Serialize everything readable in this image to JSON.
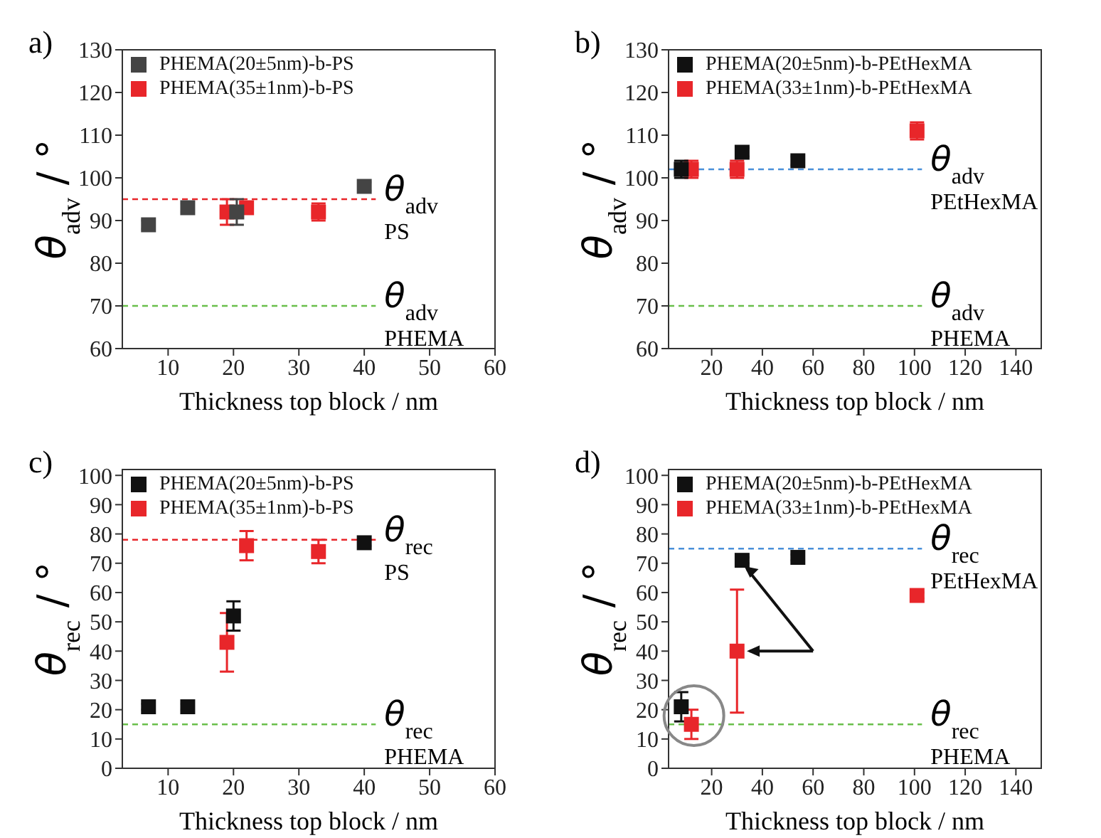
{
  "chart_data": [
    {
      "type": "scatter",
      "title": "a)",
      "xlabel": "Thickness top block / nm",
      "ylabel": "θ$_{adv}$ / °",
      "xlim": [
        3,
        60
      ],
      "xticks": [
        10,
        20,
        30,
        40,
        50,
        60
      ],
      "ylim": [
        60,
        130
      ],
      "yticks": [
        60,
        70,
        80,
        90,
        100,
        110,
        120,
        130
      ],
      "legend": "top left",
      "marker": "square",
      "grid": false,
      "series": [
        {
          "name": "PHEMA(20±5nm)-b-PS",
          "color": "#444444",
          "x": [
            7,
            13,
            20.5,
            40
          ],
          "values": [
            89,
            93,
            92,
            98
          ],
          "errors": [
            1,
            1,
            3,
            1
          ]
        },
        {
          "name": "PHEMA(35±1nm)-b-PS",
          "color": "#e8262a",
          "x": [
            19,
            22,
            33
          ],
          "values": [
            92,
            93,
            92
          ],
          "errors": [
            3,
            1,
            2
          ]
        }
      ],
      "ref_lines": [
        {
          "axis": "y",
          "value": 95,
          "label": "θ$_{adv}$ PS",
          "color": "#e8262a",
          "line_style": "dashed"
        },
        {
          "axis": "y",
          "value": 70,
          "label": "θ$_{adv}$ PHEMA",
          "color": "#6abf4b",
          "line_style": "dashed"
        }
      ]
    },
    {
      "type": "scatter",
      "title": "b)",
      "xlabel": "Thickness top block / nm",
      "ylabel": "θ$_{adv}$ / °",
      "xlim": [
        3,
        150
      ],
      "xticks": [
        20,
        40,
        60,
        80,
        100,
        120,
        140
      ],
      "ylim": [
        60,
        130
      ],
      "yticks": [
        60,
        70,
        80,
        90,
        100,
        110,
        120,
        130
      ],
      "legend": "top left",
      "marker": "square",
      "grid": false,
      "series": [
        {
          "name": "PHEMA(20±5nm)-b-PEtHexMA",
          "color": "#111111",
          "x": [
            8,
            32,
            54
          ],
          "values": [
            102,
            106,
            104
          ],
          "errors": [
            2,
            1,
            1
          ]
        },
        {
          "name": "PHEMA(33±1nm)-b-PEtHexMA",
          "color": "#e8262a",
          "x": [
            12,
            30,
            101
          ],
          "values": [
            102,
            102,
            111
          ],
          "errors": [
            2,
            2,
            2
          ]
        }
      ],
      "ref_lines": [
        {
          "axis": "y",
          "value": 102,
          "label": "θ$_{adv}$ PEtHexMA",
          "color": "#4a90d9",
          "line_style": "dashed"
        },
        {
          "axis": "y",
          "value": 70,
          "label": "θ$_{adv}$ PHEMA",
          "color": "#6abf4b",
          "line_style": "dashed"
        }
      ]
    },
    {
      "type": "scatter",
      "title": "c)",
      "xlabel": "Thickness top block / nm",
      "ylabel": "θ$_{rec}$ / °",
      "xlim": [
        3,
        60
      ],
      "xticks": [
        10,
        20,
        30,
        40,
        50,
        60
      ],
      "ylim": [
        0,
        102
      ],
      "yticks": [
        0,
        10,
        20,
        30,
        40,
        50,
        60,
        70,
        80,
        90,
        100
      ],
      "legend": "top left",
      "marker": "square",
      "grid": false,
      "series": [
        {
          "name": "PHEMA(20±5nm)-b-PS",
          "color": "#111111",
          "x": [
            7,
            13,
            20,
            40
          ],
          "values": [
            21,
            21,
            52,
            77
          ],
          "errors": [
            1,
            1,
            5,
            1
          ]
        },
        {
          "name": "PHEMA(35±1nm)-b-PS",
          "color": "#e8262a",
          "x": [
            19,
            22,
            33
          ],
          "values": [
            43,
            76,
            74
          ],
          "errors": [
            10,
            5,
            4
          ]
        }
      ],
      "ref_lines": [
        {
          "axis": "y",
          "value": 78,
          "label": "θ$_{rec}$ PS",
          "color": "#e8262a",
          "line_style": "dashed"
        },
        {
          "axis": "y",
          "value": 15,
          "label": "θ$_{rec}$ PHEMA",
          "color": "#6abf4b",
          "line_style": "dashed"
        }
      ]
    },
    {
      "type": "scatter",
      "title": "d)",
      "xlabel": "Thickness top block / nm",
      "ylabel": "θ$_{rec}$ / °",
      "xlim": [
        3,
        150
      ],
      "xticks": [
        20,
        40,
        60,
        80,
        100,
        120,
        140
      ],
      "ylim": [
        0,
        102
      ],
      "yticks": [
        0,
        10,
        20,
        30,
        40,
        50,
        60,
        70,
        80,
        90,
        100
      ],
      "legend": "top left",
      "marker": "square",
      "grid": false,
      "series": [
        {
          "name": "PHEMA(20±5nm)-b-PEtHexMA",
          "color": "#111111",
          "x": [
            8,
            32,
            54
          ],
          "values": [
            21,
            71,
            72
          ],
          "errors": [
            5,
            1,
            1
          ]
        },
        {
          "name": "PHEMA(33±1nm)-b-PEtHexMA",
          "color": "#e8262a",
          "x": [
            12,
            30,
            101
          ],
          "values": [
            15,
            40,
            59
          ],
          "errors": [
            5,
            21,
            1
          ]
        }
      ],
      "ref_lines": [
        {
          "axis": "y",
          "value": 75,
          "label": "θ$_{rec}$ PEtHexMA",
          "color": "#4a90d9",
          "line_style": "dashed"
        },
        {
          "axis": "y",
          "value": 15,
          "label": "θ$_{rec}$ PHEMA",
          "color": "#6abf4b",
          "line_style": "dashed"
        }
      ]
    }
  ]
}
